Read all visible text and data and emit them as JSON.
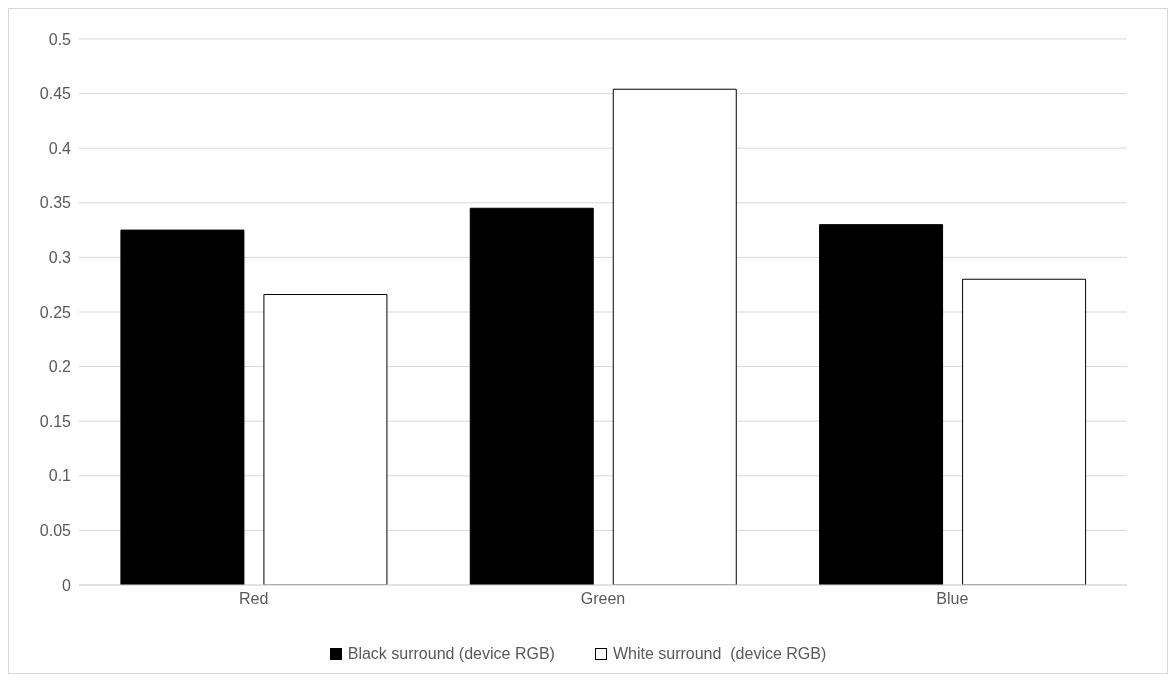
{
  "chart_data": {
    "type": "bar",
    "categories": [
      "Red",
      "Green",
      "Blue"
    ],
    "series": [
      {
        "name": "Black surround (device RGB)",
        "color": "#000000",
        "values": [
          0.325,
          0.345,
          0.33
        ]
      },
      {
        "name": "White surround  (device RGB)",
        "color": "#ffffff",
        "values": [
          0.266,
          0.454,
          0.28
        ]
      }
    ],
    "ylim": [
      0,
      0.5
    ],
    "yticks": [
      0,
      0.05,
      0.1,
      0.15,
      0.2,
      0.25,
      0.3,
      0.35,
      0.4,
      0.45,
      0.5
    ],
    "grid": "y",
    "legend": "bottom"
  }
}
